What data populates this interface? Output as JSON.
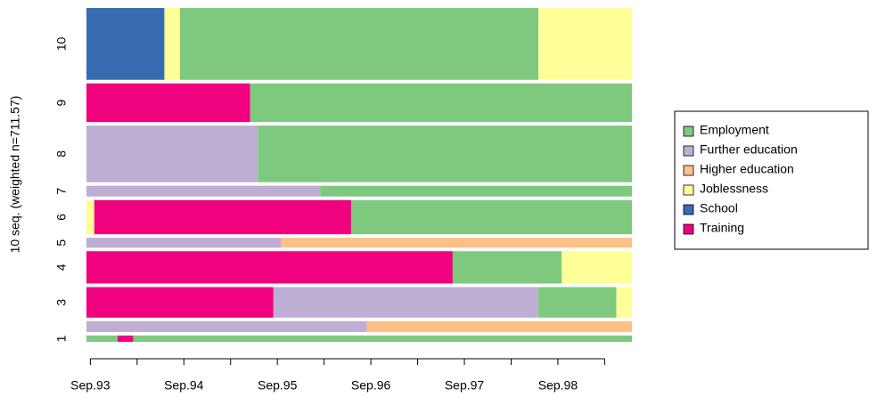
{
  "chart_data": {
    "type": "sequence-index",
    "y_label": "10 seq. (weighted n=711.57)",
    "states": [
      {
        "name": "Employment",
        "color": "#7FC97F"
      },
      {
        "name": "Further education",
        "color": "#BEAED4"
      },
      {
        "name": "Higher education",
        "color": "#FDC086"
      },
      {
        "name": "Joblessness",
        "color": "#FFFF99"
      },
      {
        "name": "School",
        "color": "#386CB0"
      },
      {
        "name": "Training",
        "color": "#F0027F"
      }
    ],
    "xlim": [
      0.5,
      70.5
    ],
    "xticks": [
      {
        "value": 1,
        "label": "Sep.93"
      },
      {
        "value": 7,
        "label": null
      },
      {
        "value": 13,
        "label": "Sep.94"
      },
      {
        "value": 19,
        "label": null
      },
      {
        "value": 25,
        "label": "Sep.95"
      },
      {
        "value": 31,
        "label": null
      },
      {
        "value": 37,
        "label": "Sep.96"
      },
      {
        "value": 43,
        "label": null
      },
      {
        "value": 49,
        "label": "Sep.97"
      },
      {
        "value": 55,
        "label": null
      },
      {
        "value": 61,
        "label": "Sep.98"
      },
      {
        "value": 67,
        "label": null
      }
    ],
    "sequences": [
      {
        "label": "1",
        "weight": 14.8,
        "spells": [
          {
            "state": 0,
            "months": 4
          },
          {
            "state": 5,
            "months": 2
          },
          {
            "state": 0,
            "months": 64
          }
        ]
      },
      {
        "label": null,
        "weight": 25.4,
        "spells": [
          {
            "state": 1,
            "months": 36
          },
          {
            "state": 2,
            "months": 34
          }
        ]
      },
      {
        "label": "3",
        "weight": 72.0,
        "spells": [
          {
            "state": 5,
            "months": 24
          },
          {
            "state": 1,
            "months": 34
          },
          {
            "state": 0,
            "months": 10
          },
          {
            "state": 3,
            "months": 2
          }
        ]
      },
      {
        "label": "4",
        "weight": 76.2,
        "spells": [
          {
            "state": 5,
            "months": 47
          },
          {
            "state": 0,
            "months": 14
          },
          {
            "state": 3,
            "months": 9
          }
        ]
      },
      {
        "label": "5",
        "weight": 23.3,
        "spells": [
          {
            "state": 1,
            "months": 25
          },
          {
            "state": 2,
            "months": 45
          }
        ]
      },
      {
        "label": "6",
        "weight": 80.5,
        "spells": [
          {
            "state": 3,
            "months": 1
          },
          {
            "state": 5,
            "months": 33
          },
          {
            "state": 0,
            "months": 36
          }
        ]
      },
      {
        "label": "7",
        "weight": 25.4,
        "spells": [
          {
            "state": 1,
            "months": 30
          },
          {
            "state": 0,
            "months": 40
          }
        ]
      },
      {
        "label": "8",
        "weight": 133.4,
        "spells": [
          {
            "state": 1,
            "months": 22
          },
          {
            "state": 0,
            "months": 48
          }
        ]
      },
      {
        "label": "9",
        "weight": 91.1,
        "spells": [
          {
            "state": 5,
            "months": 21
          },
          {
            "state": 0,
            "months": 49
          }
        ]
      },
      {
        "label": "10",
        "weight": 169.4,
        "spells": [
          {
            "state": 4,
            "months": 10
          },
          {
            "state": 3,
            "months": 2
          },
          {
            "state": 0,
            "months": 46
          },
          {
            "state": 3,
            "months": 12
          }
        ]
      }
    ]
  }
}
